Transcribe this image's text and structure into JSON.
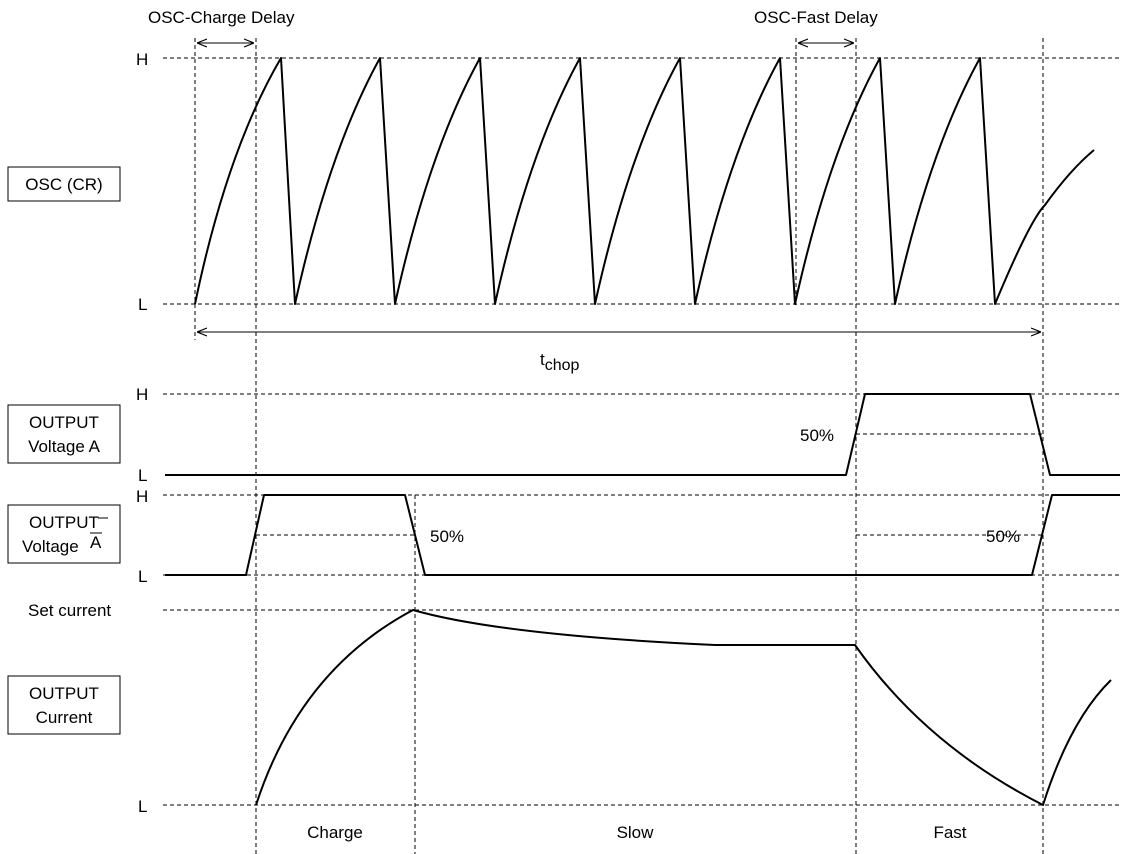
{
  "title_delays": {
    "charge_delay": "OSC-Charge Delay",
    "fast_delay": "OSC-Fast Delay"
  },
  "signals": {
    "osc": {
      "label": "OSC (CR)",
      "high": "H",
      "low": "L"
    },
    "voltage_a": {
      "label_line1": "OUTPUT",
      "label_line2": "Voltage A",
      "high": "H",
      "low": "L",
      "threshold": "50%"
    },
    "voltage_a_bar": {
      "label_line1": "OUTPUT",
      "label_line2": "Voltage",
      "label_bar": "A",
      "high": "H",
      "low": "L",
      "threshold_left": "50%",
      "threshold_right": "50%"
    },
    "current": {
      "label_line1": "OUTPUT",
      "label_line2": "Current",
      "set_level": "Set current",
      "low": "L"
    }
  },
  "tchop": {
    "main": "t",
    "sub": "chop"
  },
  "phases": [
    "Charge",
    "Slow",
    "Fast"
  ],
  "colors": {
    "line": "#000000",
    "background": "#ffffff"
  }
}
